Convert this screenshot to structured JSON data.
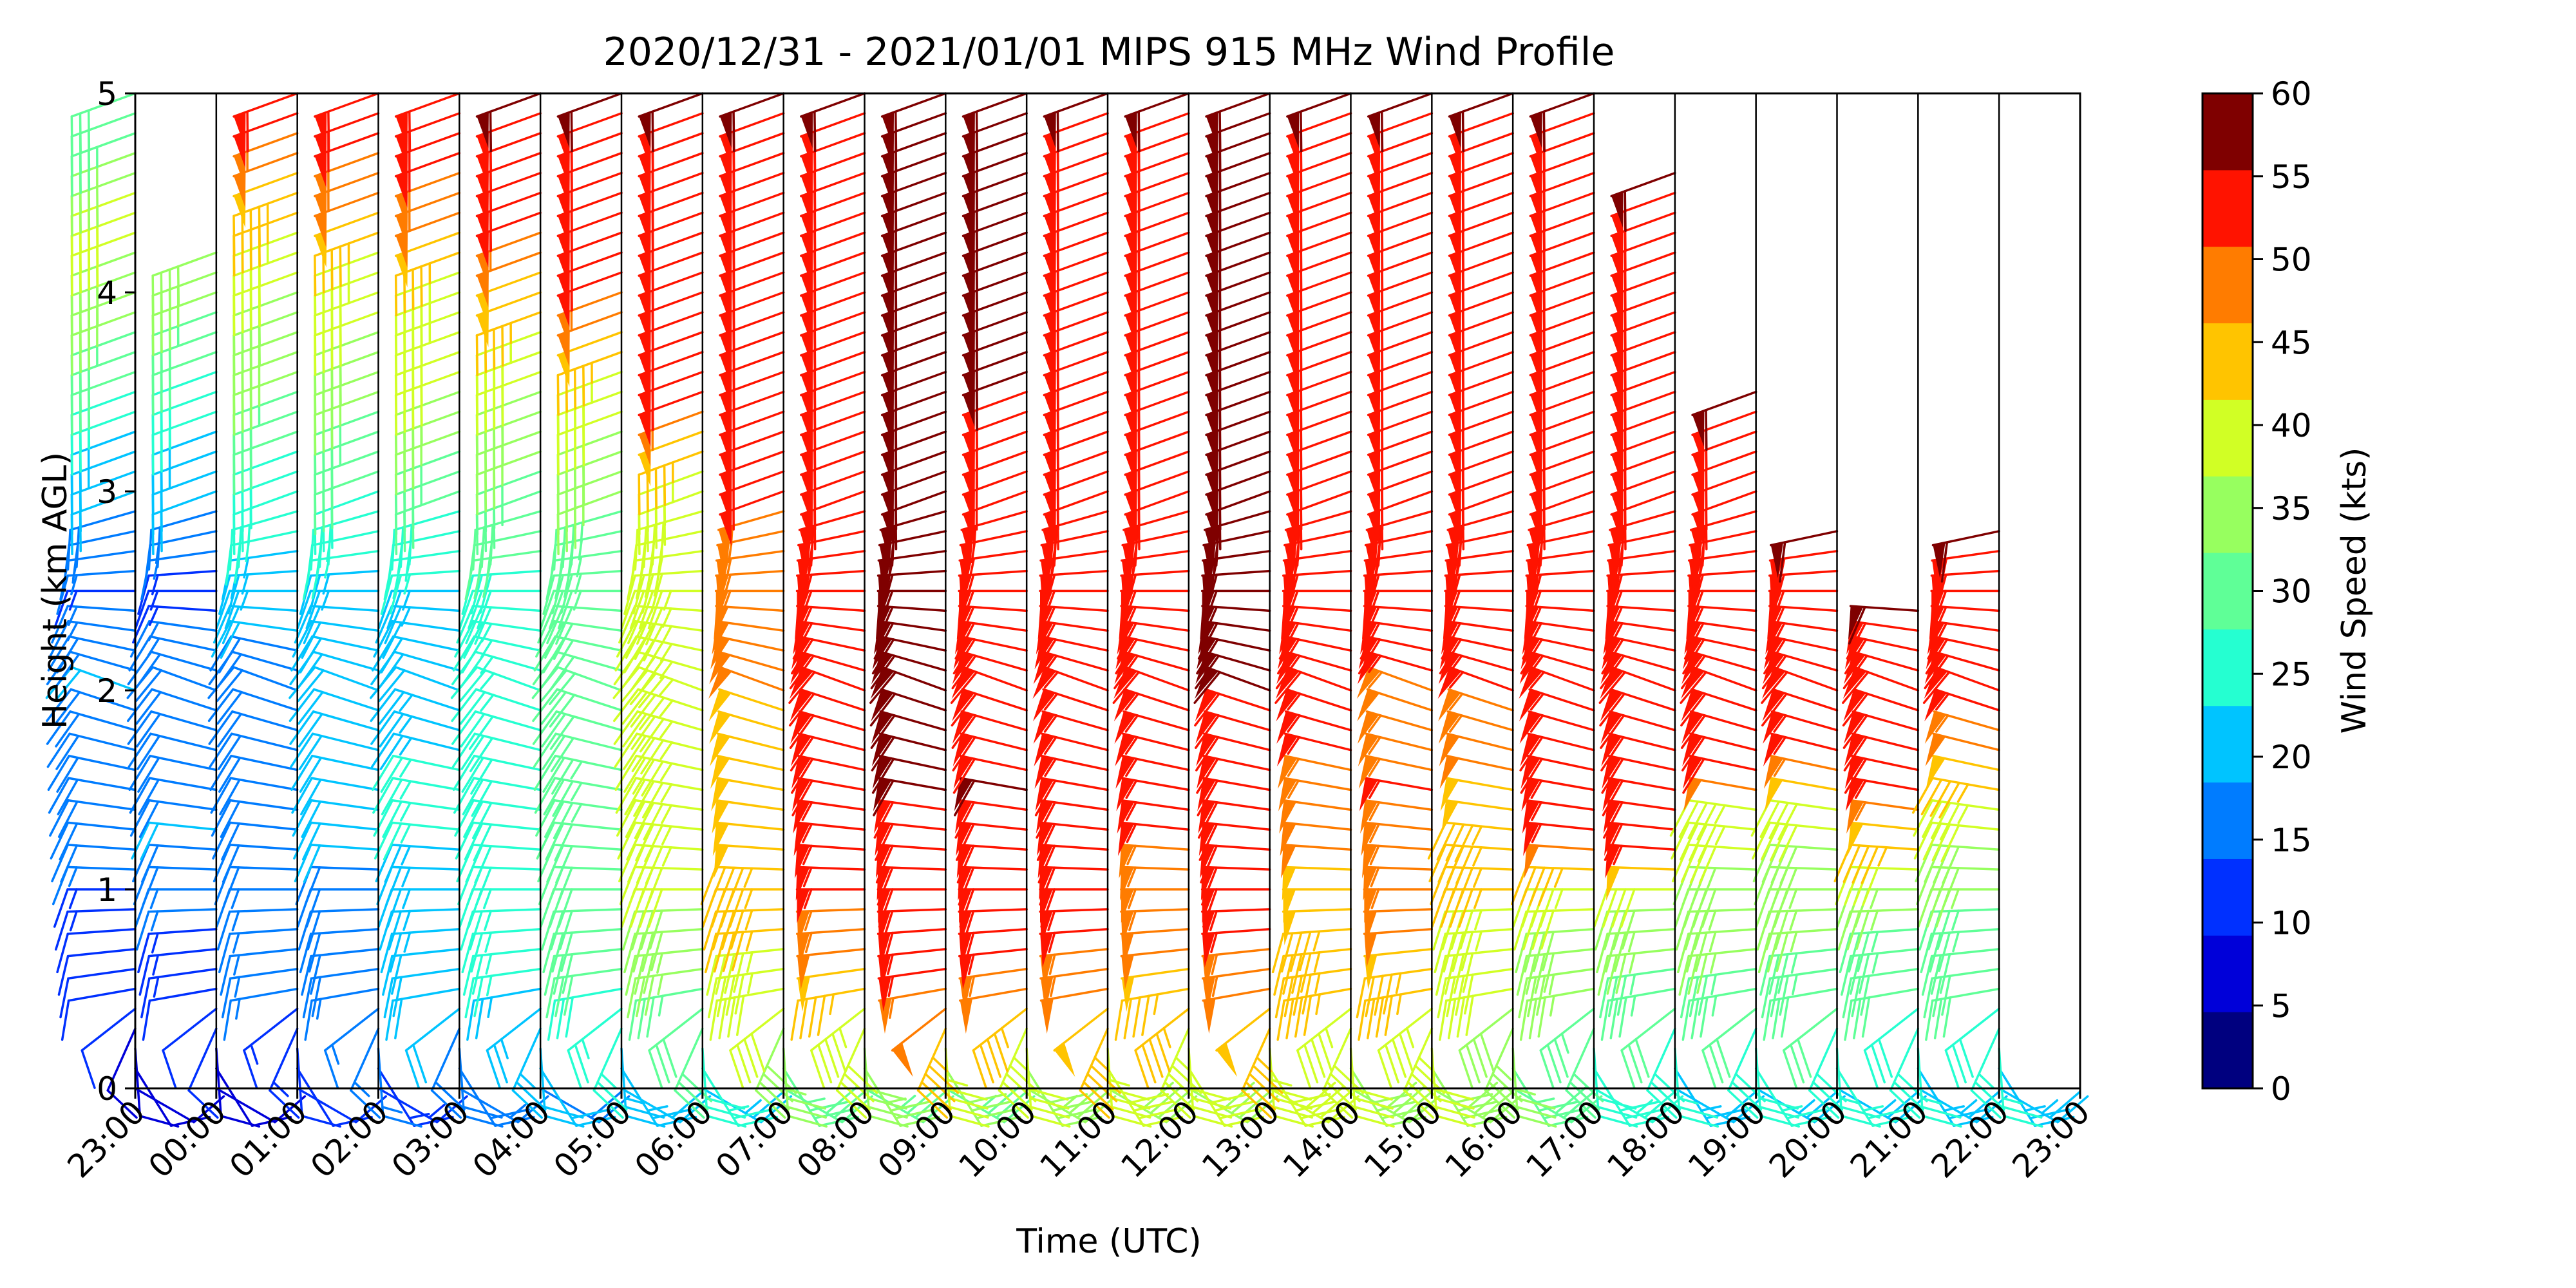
{
  "chart_data": {
    "type": "wind-barb-profile",
    "title": "2020/12/31 - 2021/01/01 MIPS 915 MHz Wind Profile",
    "xlabel": "Time (UTC)",
    "ylabel": "Height (km AGL)",
    "x_ticks": [
      "23:00",
      "00:00",
      "01:00",
      "02:00",
      "03:00",
      "04:00",
      "05:00",
      "06:00",
      "07:00",
      "08:00",
      "09:00",
      "10:00",
      "11:00",
      "12:00",
      "13:00",
      "14:00",
      "15:00",
      "16:00",
      "17:00",
      "18:00",
      "19:00",
      "20:00",
      "21:00",
      "22:00",
      "23:00"
    ],
    "y_ticks": [
      "0",
      "1",
      "2",
      "3",
      "4",
      "5"
    ],
    "ylim": [
      0,
      5
    ],
    "grid": "vertical lines at each hour",
    "colorbar": {
      "label": "Wind Speed (kts)",
      "ticks": [
        "0",
        "5",
        "10",
        "15",
        "20",
        "25",
        "30",
        "35",
        "40",
        "45",
        "50",
        "55",
        "60"
      ],
      "range": [
        0,
        60
      ],
      "colors": [
        "#00007f",
        "#0000d9",
        "#0030ff",
        "#007cff",
        "#00c4ff",
        "#25ffd1",
        "#5fff97",
        "#97ff5f",
        "#d1ff25",
        "#ffc400",
        "#ff7c00",
        "#ff1300",
        "#7f0000"
      ]
    },
    "columns": [
      {
        "time": "23:00",
        "top_km": 5.0,
        "profile": [
          [
            0.0,
            8
          ],
          [
            0.8,
            12
          ],
          [
            1.3,
            19
          ],
          [
            2.0,
            20
          ],
          [
            2.5,
            14
          ],
          [
            3.2,
            23
          ],
          [
            4.0,
            37
          ],
          [
            4.5,
            42
          ],
          [
            5.0,
            30
          ]
        ]
      },
      {
        "time": "00:00",
        "top_km": 4.2,
        "profile": [
          [
            0.0,
            8
          ],
          [
            0.8,
            14
          ],
          [
            1.3,
            20
          ],
          [
            2.0,
            19
          ],
          [
            2.5,
            13
          ],
          [
            3.2,
            23
          ],
          [
            4.0,
            35
          ],
          [
            4.2,
            38
          ]
        ]
      },
      {
        "time": "01:00",
        "top_km": 5.0,
        "profile": [
          [
            0.0,
            10
          ],
          [
            0.6,
            16
          ],
          [
            1.5,
            19
          ],
          [
            2.0,
            18
          ],
          [
            3.0,
            27
          ],
          [
            3.6,
            35
          ],
          [
            4.2,
            42
          ],
          [
            4.5,
            47
          ],
          [
            5.0,
            58
          ]
        ]
      },
      {
        "time": "02:00",
        "top_km": 5.0,
        "profile": [
          [
            0.0,
            14
          ],
          [
            0.6,
            18
          ],
          [
            1.5,
            21
          ],
          [
            2.2,
            20
          ],
          [
            3.0,
            29
          ],
          [
            3.6,
            37
          ],
          [
            4.2,
            44
          ],
          [
            4.5,
            52
          ],
          [
            5.0,
            58
          ]
        ]
      },
      {
        "time": "03:00",
        "top_km": 5.0,
        "profile": [
          [
            0.0,
            17
          ],
          [
            0.6,
            22
          ],
          [
            1.5,
            26
          ],
          [
            2.2,
            20
          ],
          [
            3.0,
            31
          ],
          [
            3.6,
            40
          ],
          [
            4.2,
            46
          ],
          [
            4.5,
            54
          ],
          [
            5.0,
            58
          ]
        ]
      },
      {
        "time": "04:00",
        "top_km": 5.0,
        "profile": [
          [
            0.0,
            19
          ],
          [
            0.6,
            26
          ],
          [
            1.5,
            29
          ],
          [
            2.2,
            26
          ],
          [
            3.0,
            33
          ],
          [
            3.6,
            40
          ],
          [
            4.2,
            52
          ],
          [
            4.5,
            58
          ],
          [
            5.0,
            60
          ]
        ]
      },
      {
        "time": "05:00",
        "top_km": 5.0,
        "profile": [
          [
            0.0,
            22
          ],
          [
            0.6,
            30
          ],
          [
            1.5,
            33
          ],
          [
            2.2,
            31
          ],
          [
            3.0,
            35
          ],
          [
            3.6,
            43
          ],
          [
            4.2,
            58
          ],
          [
            5.0,
            60
          ]
        ]
      },
      {
        "time": "06:00",
        "top_km": 5.0,
        "profile": [
          [
            0.0,
            24
          ],
          [
            0.6,
            36
          ],
          [
            1.2,
            43
          ],
          [
            2.0,
            44
          ],
          [
            3.0,
            41
          ],
          [
            3.6,
            59
          ],
          [
            5.0,
            60
          ]
        ]
      },
      {
        "time": "07:00",
        "top_km": 5.0,
        "profile": [
          [
            0.0,
            30
          ],
          [
            0.4,
            41
          ],
          [
            1.0,
            47
          ],
          [
            2.0,
            50
          ],
          [
            3.0,
            55
          ],
          [
            3.6,
            59
          ],
          [
            5.0,
            60
          ]
        ]
      },
      {
        "time": "08:00",
        "top_km": 5.0,
        "profile": [
          [
            0.0,
            33
          ],
          [
            0.4,
            44
          ],
          [
            0.8,
            54
          ],
          [
            1.3,
            57
          ],
          [
            2.0,
            59
          ],
          [
            5.0,
            60
          ]
        ]
      },
      {
        "time": "09:00",
        "top_km": 5.0,
        "profile": [
          [
            0.0,
            33
          ],
          [
            0.4,
            52
          ],
          [
            0.8,
            59
          ],
          [
            1.5,
            60
          ],
          [
            5.0,
            60
          ]
        ]
      },
      {
        "time": "10:00",
        "top_km": 5.0,
        "profile": [
          [
            0.0,
            36
          ],
          [
            0.4,
            47
          ],
          [
            0.8,
            59
          ],
          [
            1.5,
            60
          ],
          [
            2.5,
            58
          ],
          [
            3.0,
            55
          ],
          [
            3.6,
            60
          ],
          [
            5.0,
            60
          ]
        ]
      },
      {
        "time": "11:00",
        "top_km": 5.0,
        "profile": [
          [
            0.0,
            38
          ],
          [
            0.4,
            48
          ],
          [
            0.8,
            57
          ],
          [
            1.3,
            59
          ],
          [
            2.0,
            55
          ],
          [
            2.5,
            57
          ],
          [
            3.0,
            59
          ],
          [
            5.0,
            60
          ]
        ]
      },
      {
        "time": "12:00",
        "top_km": 5.0,
        "profile": [
          [
            0.0,
            38
          ],
          [
            0.4,
            46
          ],
          [
            1.0,
            54
          ],
          [
            1.8,
            57
          ],
          [
            2.5,
            59
          ],
          [
            5.0,
            60
          ]
        ]
      },
      {
        "time": "13:00",
        "top_km": 5.0,
        "profile": [
          [
            0.0,
            40
          ],
          [
            0.4,
            48
          ],
          [
            0.8,
            57
          ],
          [
            1.3,
            59
          ],
          [
            2.0,
            60
          ],
          [
            5.0,
            60
          ]
        ]
      },
      {
        "time": "14:00",
        "top_km": 5.0,
        "profile": [
          [
            0.0,
            38
          ],
          [
            0.5,
            45
          ],
          [
            1.2,
            50
          ],
          [
            1.6,
            54
          ],
          [
            2.0,
            58
          ],
          [
            5.0,
            60
          ]
        ]
      },
      {
        "time": "15:00",
        "top_km": 5.0,
        "profile": [
          [
            0.0,
            38
          ],
          [
            0.5,
            46
          ],
          [
            1.0,
            53
          ],
          [
            1.5,
            55
          ],
          [
            1.9,
            52
          ],
          [
            2.2,
            58
          ],
          [
            5.0,
            60
          ]
        ]
      },
      {
        "time": "16:00",
        "top_km": 5.0,
        "profile": [
          [
            0.0,
            32
          ],
          [
            0.5,
            40
          ],
          [
            1.0,
            45
          ],
          [
            1.5,
            49
          ],
          [
            1.9,
            54
          ],
          [
            2.2,
            58
          ],
          [
            5.0,
            60
          ]
        ]
      },
      {
        "time": "17:00",
        "top_km": 5.0,
        "profile": [
          [
            0.0,
            26
          ],
          [
            0.5,
            35
          ],
          [
            1.0,
            43
          ],
          [
            1.3,
            56
          ],
          [
            1.6,
            58
          ],
          [
            2.0,
            56
          ],
          [
            2.3,
            59
          ],
          [
            5.0,
            60
          ]
        ]
      },
      {
        "time": "18:00",
        "top_km": 4.6,
        "profile": [
          [
            0.0,
            22
          ],
          [
            0.5,
            33
          ],
          [
            1.0,
            40
          ],
          [
            1.2,
            57
          ],
          [
            1.6,
            59
          ],
          [
            4.6,
            60
          ]
        ]
      },
      {
        "time": "19:00",
        "top_km": 3.5,
        "profile": [
          [
            0.0,
            24
          ],
          [
            0.5,
            33
          ],
          [
            1.0,
            38
          ],
          [
            1.4,
            44
          ],
          [
            1.6,
            59
          ],
          [
            3.5,
            60
          ]
        ]
      },
      {
        "time": "20:00",
        "top_km": 2.8,
        "profile": [
          [
            0.0,
            24
          ],
          [
            0.5,
            32
          ],
          [
            1.0,
            37
          ],
          [
            1.4,
            42
          ],
          [
            1.6,
            54
          ],
          [
            1.9,
            59
          ],
          [
            2.8,
            60
          ]
        ]
      },
      {
        "time": "21:00",
        "top_km": 2.4,
        "profile": [
          [
            0.0,
            23
          ],
          [
            0.5,
            31
          ],
          [
            1.0,
            37
          ],
          [
            1.4,
            53
          ],
          [
            1.6,
            58
          ],
          [
            2.4,
            60
          ]
        ]
      },
      {
        "time": "22:00",
        "top_km": 2.8,
        "profile": [
          [
            0.0,
            23
          ],
          [
            0.5,
            30
          ],
          [
            1.0,
            36
          ],
          [
            1.4,
            43
          ],
          [
            1.7,
            50
          ],
          [
            2.0,
            59
          ],
          [
            2.8,
            60
          ]
        ]
      }
    ]
  }
}
